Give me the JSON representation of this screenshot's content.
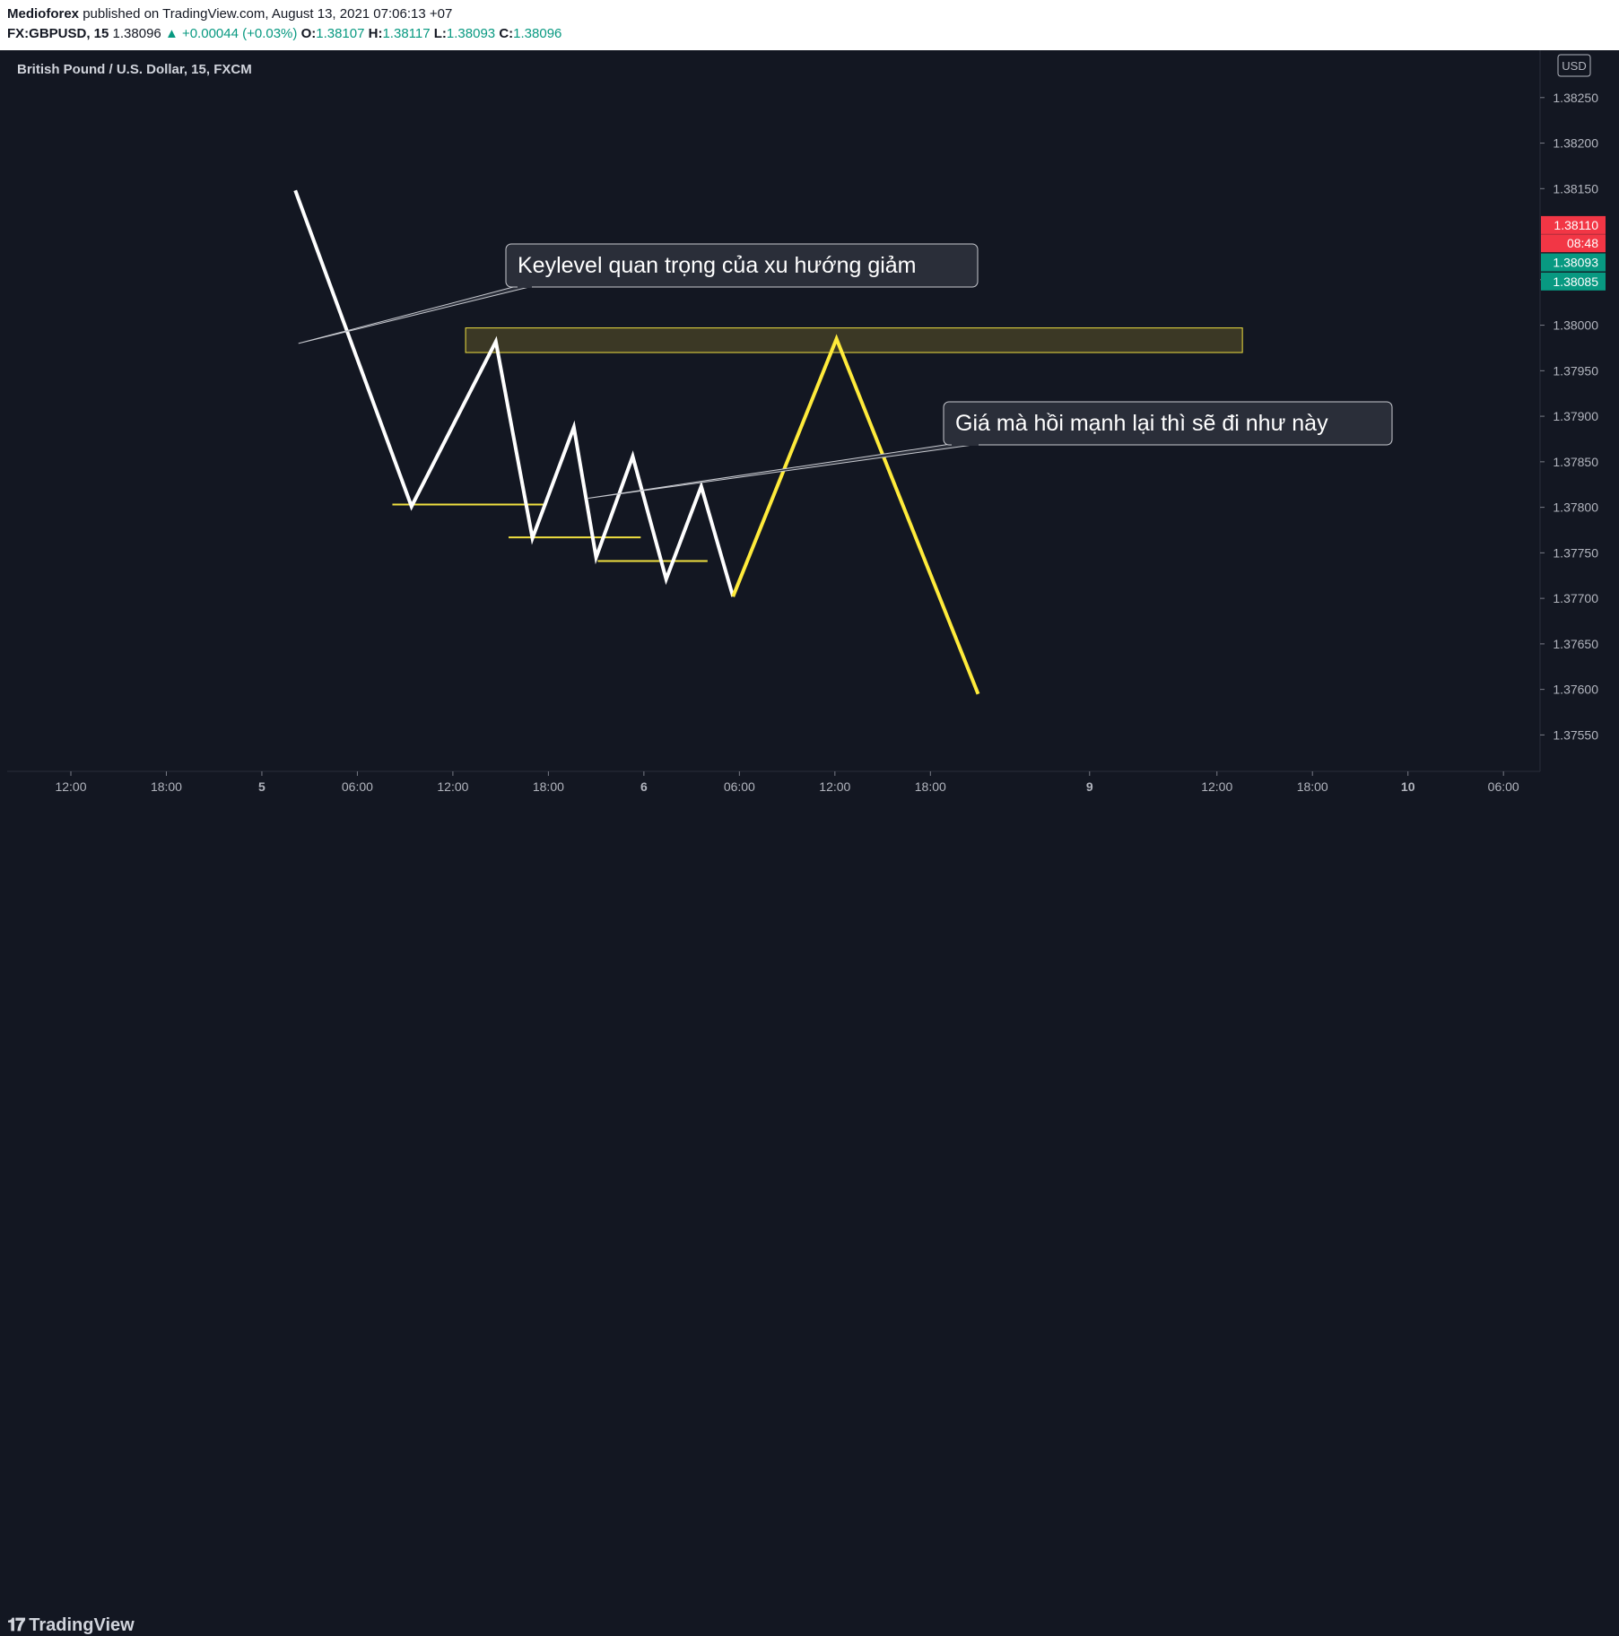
{
  "header": {
    "author": "Medioforex",
    "published_text": "published on TradingView.com, August 13, 2021 07:06:13 +07",
    "symbol": "FX:GBPUSD, 15",
    "last": "1.38096",
    "change": "▲ +0.00044 (+0.03%)",
    "o_label": "O:",
    "o_value": "1.38107",
    "h_label": "H:",
    "h_value": "1.38117",
    "l_label": "L:",
    "l_value": "1.38093",
    "c_label": "C:",
    "c_value": "1.38096"
  },
  "chart_title": "British Pound / U.S. Dollar, 15, FXCM",
  "currency": "USD",
  "brand": "TradingView",
  "colors": {
    "background": "#131722",
    "line_main": "#ffffff",
    "line_projection": "#ffeb3b",
    "zone_fill": "#3d3a26",
    "zone_border": "#f0e040",
    "axis_text": "#b2b5be",
    "red_badge": "#f23645",
    "green_badge": "#089981"
  },
  "price_badges": [
    {
      "label": "1.38110",
      "value": 1.3811,
      "color": "#f23645"
    },
    {
      "label": "08:48",
      "value": 1.3809,
      "color": "#f23645"
    },
    {
      "label": "1.38093",
      "value": 1.38069,
      "color": "#089981"
    },
    {
      "label": "1.38085",
      "value": 1.38048,
      "color": "#089981"
    }
  ],
  "annotations": [
    {
      "text": "Keylevel quan trọng của xu hướng giảm",
      "target_x": 14.3,
      "target_y": 1.3798
    },
    {
      "text": "Giá mà hồi mạnh lại thì sẽ đi như này",
      "target_x": 32.5,
      "target_y": 1.3781
    }
  ],
  "chart_data": {
    "type": "line",
    "title": "British Pound / U.S. Dollar, 15, FXCM",
    "x_ticks": [
      {
        "label": "12:00",
        "x": 0
      },
      {
        "label": "18:00",
        "x": 6
      },
      {
        "label": "5",
        "x": 12
      },
      {
        "label": "06:00",
        "x": 18
      },
      {
        "label": "12:00",
        "x": 24
      },
      {
        "label": "18:00",
        "x": 30
      },
      {
        "label": "6",
        "x": 36
      },
      {
        "label": "06:00",
        "x": 42
      },
      {
        "label": "12:00",
        "x": 48
      },
      {
        "label": "18:00",
        "x": 54
      },
      {
        "label": "9",
        "x": 64
      },
      {
        "label": "12:00",
        "x": 72
      },
      {
        "label": "18:00",
        "x": 78
      },
      {
        "label": "10",
        "x": 84
      },
      {
        "label": "06:00",
        "x": 90
      }
    ],
    "xlim": [
      -4,
      92.3
    ],
    "y_ticks": [
      1.3825,
      1.382,
      1.3815,
      1.3805,
      1.38,
      1.3795,
      1.379,
      1.3785,
      1.378,
      1.3775,
      1.377,
      1.3765,
      1.376,
      1.3755
    ],
    "y_tick_labels": [
      "1.38250",
      "1.38200",
      "1.38150",
      "1.38050",
      "1.38000",
      "1.37950",
      "1.37900",
      "1.37850",
      "1.37800",
      "1.37750",
      "1.37700",
      "1.37650",
      "1.37600",
      "1.37550"
    ],
    "ylim": [
      1.3751,
      1.38302
    ],
    "series": [
      {
        "line_type": "main",
        "x": [
          14.1,
          21.4,
          26.7,
          29.0,
          31.6,
          33.0,
          35.3,
          37.4,
          39.6,
          41.6
        ],
        "values": [
          1.38148,
          1.37801,
          1.37982,
          1.37766,
          1.37888,
          1.37745,
          1.37856,
          1.37721,
          1.37823,
          1.37702
        ]
      },
      {
        "line_type": "projection",
        "x": [
          41.6,
          48.1,
          57.0
        ],
        "values": [
          1.37702,
          1.37985,
          1.37595
        ]
      }
    ],
    "zone": {
      "x0": 24.8,
      "x1": 73.6,
      "y_low": 1.3797,
      "y_high": 1.37997
    },
    "levels": [
      {
        "x0": 20.2,
        "x1": 29.9,
        "y": 1.37803
      },
      {
        "x0": 27.5,
        "x1": 35.8,
        "y": 1.37767
      },
      {
        "x0": 33.1,
        "x1": 40.0,
        "y": 1.37741
      }
    ],
    "grid": false
  }
}
